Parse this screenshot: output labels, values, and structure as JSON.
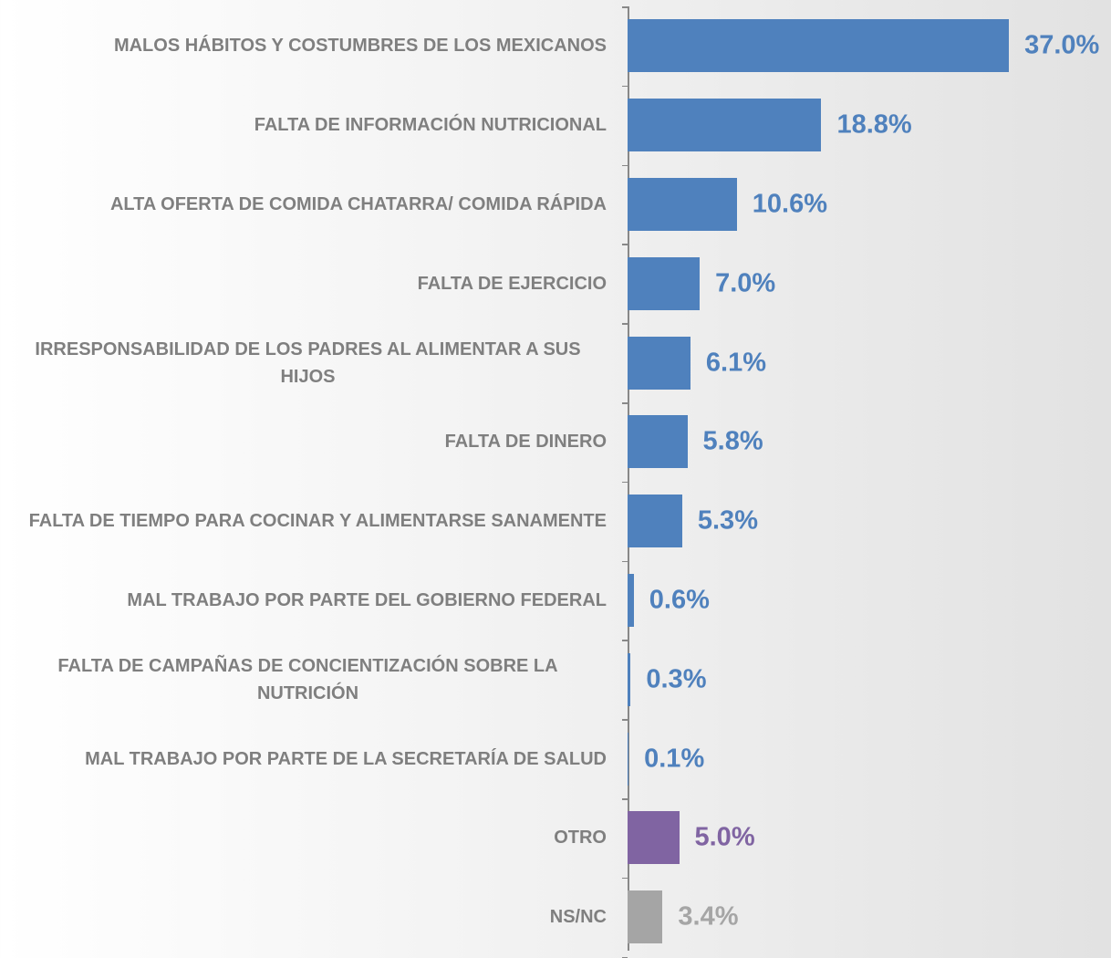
{
  "chart_data": {
    "type": "bar",
    "orientation": "horizontal",
    "categories": [
      "MALOS HÁBITOS Y COSTUMBRES DE LOS MEXICANOS",
      "FALTA DE INFORMACIÓN NUTRICIONAL",
      "ALTA OFERTA DE COMIDA CHATARRA/ COMIDA RÁPIDA",
      "FALTA DE EJERCICIO",
      "IRRESPONSABILIDAD DE LOS PADRES AL ALIMENTAR A SUS HIJOS",
      "FALTA DE DINERO",
      "FALTA DE TIEMPO PARA COCINAR Y ALIMENTARSE SANAMENTE",
      "MAL TRABAJO POR PARTE DEL GOBIERNO FEDERAL",
      "FALTA DE CAMPAÑAS DE CONCIENTIZACIÓN SOBRE LA NUTRICIÓN",
      "MAL TRABAJO POR PARTE DE LA SECRETARÍA DE SALUD",
      "OTRO",
      "NS/NC"
    ],
    "values": [
      37.0,
      18.8,
      10.6,
      7.0,
      6.1,
      5.8,
      5.3,
      0.6,
      0.3,
      0.1,
      5.0,
      3.4
    ],
    "value_labels": [
      "37.0%",
      "18.8%",
      "10.6%",
      "7.0%",
      "6.1%",
      "5.8%",
      "5.3%",
      "0.6%",
      "0.3%",
      "0.1%",
      "5.0%",
      "3.4%"
    ],
    "colors": [
      "#4f81bd",
      "#4f81bd",
      "#4f81bd",
      "#4f81bd",
      "#4f81bd",
      "#4f81bd",
      "#4f81bd",
      "#4f81bd",
      "#4f81bd",
      "#4f81bd",
      "#8064a2",
      "#a5a5a5"
    ]
  }
}
